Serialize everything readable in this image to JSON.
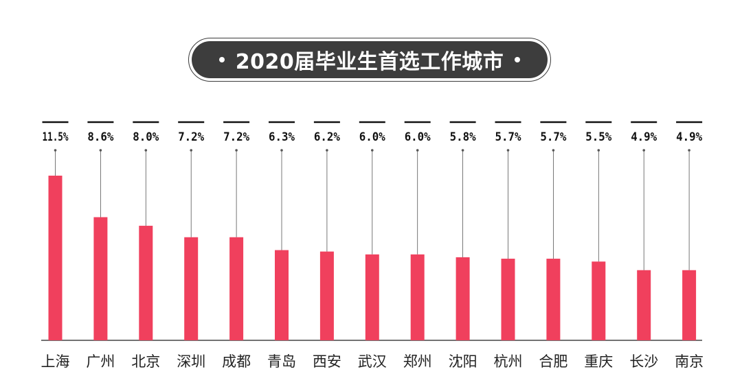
{
  "colors": {
    "bar": "#f0405d",
    "title_bg": "#3d3d3d",
    "axis": "#444444",
    "text": "#222222"
  },
  "chart_data": {
    "type": "bar",
    "title": "2020届毕业生首选工作城市",
    "categories": [
      "上海",
      "广州",
      "北京",
      "深圳",
      "成都",
      "青岛",
      "西安",
      "武汉",
      "郑州",
      "沈阳",
      "杭州",
      "合肥",
      "重庆",
      "长沙",
      "南京"
    ],
    "values": [
      11.5,
      8.6,
      8.0,
      7.2,
      7.2,
      6.3,
      6.2,
      6.0,
      6.0,
      5.8,
      5.7,
      5.7,
      5.5,
      4.9,
      4.9
    ],
    "value_labels": [
      "11.5%",
      "8.6%",
      "8.0%",
      "7.2%",
      "7.2%",
      "6.3%",
      "6.2%",
      "6.0%",
      "6.0%",
      "5.8%",
      "5.7%",
      "5.7%",
      "5.5%",
      "4.9%",
      "4.9%"
    ],
    "unit": "%",
    "ylim": [
      0,
      11.5
    ],
    "grid": false,
    "legend": "none"
  }
}
